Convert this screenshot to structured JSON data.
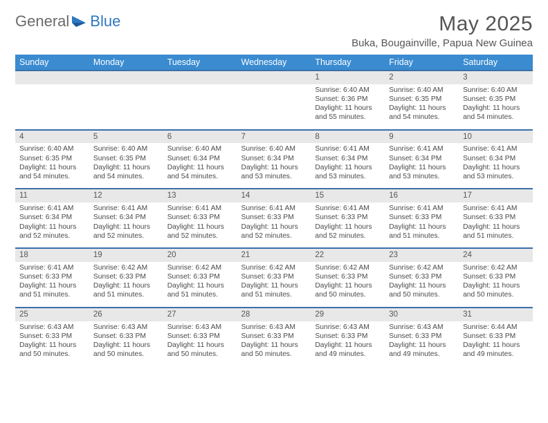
{
  "logo": {
    "general": "General",
    "blue": "Blue"
  },
  "title": "May 2025",
  "location": "Buka, Bougainville, Papua New Guinea",
  "colors": {
    "header_bg": "#3a8bd0",
    "header_text": "#ffffff",
    "row_border": "#3a6fa8",
    "daynum_bg": "#e8e8e8",
    "text": "#4a4a4a",
    "logo_gray": "#6a6a6a",
    "logo_blue": "#2f78c2"
  },
  "weekdays": [
    "Sunday",
    "Monday",
    "Tuesday",
    "Wednesday",
    "Thursday",
    "Friday",
    "Saturday"
  ],
  "weeks": [
    {
      "nums": [
        "",
        "",
        "",
        "",
        "1",
        "2",
        "3"
      ],
      "cells": [
        null,
        null,
        null,
        null,
        {
          "sunrise": "Sunrise: 6:40 AM",
          "sunset": "Sunset: 6:36 PM",
          "day1": "Daylight: 11 hours",
          "day2": "and 55 minutes."
        },
        {
          "sunrise": "Sunrise: 6:40 AM",
          "sunset": "Sunset: 6:35 PM",
          "day1": "Daylight: 11 hours",
          "day2": "and 54 minutes."
        },
        {
          "sunrise": "Sunrise: 6:40 AM",
          "sunset": "Sunset: 6:35 PM",
          "day1": "Daylight: 11 hours",
          "day2": "and 54 minutes."
        }
      ]
    },
    {
      "nums": [
        "4",
        "5",
        "6",
        "7",
        "8",
        "9",
        "10"
      ],
      "cells": [
        {
          "sunrise": "Sunrise: 6:40 AM",
          "sunset": "Sunset: 6:35 PM",
          "day1": "Daylight: 11 hours",
          "day2": "and 54 minutes."
        },
        {
          "sunrise": "Sunrise: 6:40 AM",
          "sunset": "Sunset: 6:35 PM",
          "day1": "Daylight: 11 hours",
          "day2": "and 54 minutes."
        },
        {
          "sunrise": "Sunrise: 6:40 AM",
          "sunset": "Sunset: 6:34 PM",
          "day1": "Daylight: 11 hours",
          "day2": "and 54 minutes."
        },
        {
          "sunrise": "Sunrise: 6:40 AM",
          "sunset": "Sunset: 6:34 PM",
          "day1": "Daylight: 11 hours",
          "day2": "and 53 minutes."
        },
        {
          "sunrise": "Sunrise: 6:41 AM",
          "sunset": "Sunset: 6:34 PM",
          "day1": "Daylight: 11 hours",
          "day2": "and 53 minutes."
        },
        {
          "sunrise": "Sunrise: 6:41 AM",
          "sunset": "Sunset: 6:34 PM",
          "day1": "Daylight: 11 hours",
          "day2": "and 53 minutes."
        },
        {
          "sunrise": "Sunrise: 6:41 AM",
          "sunset": "Sunset: 6:34 PM",
          "day1": "Daylight: 11 hours",
          "day2": "and 53 minutes."
        }
      ]
    },
    {
      "nums": [
        "11",
        "12",
        "13",
        "14",
        "15",
        "16",
        "17"
      ],
      "cells": [
        {
          "sunrise": "Sunrise: 6:41 AM",
          "sunset": "Sunset: 6:34 PM",
          "day1": "Daylight: 11 hours",
          "day2": "and 52 minutes."
        },
        {
          "sunrise": "Sunrise: 6:41 AM",
          "sunset": "Sunset: 6:34 PM",
          "day1": "Daylight: 11 hours",
          "day2": "and 52 minutes."
        },
        {
          "sunrise": "Sunrise: 6:41 AM",
          "sunset": "Sunset: 6:33 PM",
          "day1": "Daylight: 11 hours",
          "day2": "and 52 minutes."
        },
        {
          "sunrise": "Sunrise: 6:41 AM",
          "sunset": "Sunset: 6:33 PM",
          "day1": "Daylight: 11 hours",
          "day2": "and 52 minutes."
        },
        {
          "sunrise": "Sunrise: 6:41 AM",
          "sunset": "Sunset: 6:33 PM",
          "day1": "Daylight: 11 hours",
          "day2": "and 52 minutes."
        },
        {
          "sunrise": "Sunrise: 6:41 AM",
          "sunset": "Sunset: 6:33 PM",
          "day1": "Daylight: 11 hours",
          "day2": "and 51 minutes."
        },
        {
          "sunrise": "Sunrise: 6:41 AM",
          "sunset": "Sunset: 6:33 PM",
          "day1": "Daylight: 11 hours",
          "day2": "and 51 minutes."
        }
      ]
    },
    {
      "nums": [
        "18",
        "19",
        "20",
        "21",
        "22",
        "23",
        "24"
      ],
      "cells": [
        {
          "sunrise": "Sunrise: 6:41 AM",
          "sunset": "Sunset: 6:33 PM",
          "day1": "Daylight: 11 hours",
          "day2": "and 51 minutes."
        },
        {
          "sunrise": "Sunrise: 6:42 AM",
          "sunset": "Sunset: 6:33 PM",
          "day1": "Daylight: 11 hours",
          "day2": "and 51 minutes."
        },
        {
          "sunrise": "Sunrise: 6:42 AM",
          "sunset": "Sunset: 6:33 PM",
          "day1": "Daylight: 11 hours",
          "day2": "and 51 minutes."
        },
        {
          "sunrise": "Sunrise: 6:42 AM",
          "sunset": "Sunset: 6:33 PM",
          "day1": "Daylight: 11 hours",
          "day2": "and 51 minutes."
        },
        {
          "sunrise": "Sunrise: 6:42 AM",
          "sunset": "Sunset: 6:33 PM",
          "day1": "Daylight: 11 hours",
          "day2": "and 50 minutes."
        },
        {
          "sunrise": "Sunrise: 6:42 AM",
          "sunset": "Sunset: 6:33 PM",
          "day1": "Daylight: 11 hours",
          "day2": "and 50 minutes."
        },
        {
          "sunrise": "Sunrise: 6:42 AM",
          "sunset": "Sunset: 6:33 PM",
          "day1": "Daylight: 11 hours",
          "day2": "and 50 minutes."
        }
      ]
    },
    {
      "nums": [
        "25",
        "26",
        "27",
        "28",
        "29",
        "30",
        "31"
      ],
      "cells": [
        {
          "sunrise": "Sunrise: 6:43 AM",
          "sunset": "Sunset: 6:33 PM",
          "day1": "Daylight: 11 hours",
          "day2": "and 50 minutes."
        },
        {
          "sunrise": "Sunrise: 6:43 AM",
          "sunset": "Sunset: 6:33 PM",
          "day1": "Daylight: 11 hours",
          "day2": "and 50 minutes."
        },
        {
          "sunrise": "Sunrise: 6:43 AM",
          "sunset": "Sunset: 6:33 PM",
          "day1": "Daylight: 11 hours",
          "day2": "and 50 minutes."
        },
        {
          "sunrise": "Sunrise: 6:43 AM",
          "sunset": "Sunset: 6:33 PM",
          "day1": "Daylight: 11 hours",
          "day2": "and 50 minutes."
        },
        {
          "sunrise": "Sunrise: 6:43 AM",
          "sunset": "Sunset: 6:33 PM",
          "day1": "Daylight: 11 hours",
          "day2": "and 49 minutes."
        },
        {
          "sunrise": "Sunrise: 6:43 AM",
          "sunset": "Sunset: 6:33 PM",
          "day1": "Daylight: 11 hours",
          "day2": "and 49 minutes."
        },
        {
          "sunrise": "Sunrise: 6:44 AM",
          "sunset": "Sunset: 6:33 PM",
          "day1": "Daylight: 11 hours",
          "day2": "and 49 minutes."
        }
      ]
    }
  ]
}
